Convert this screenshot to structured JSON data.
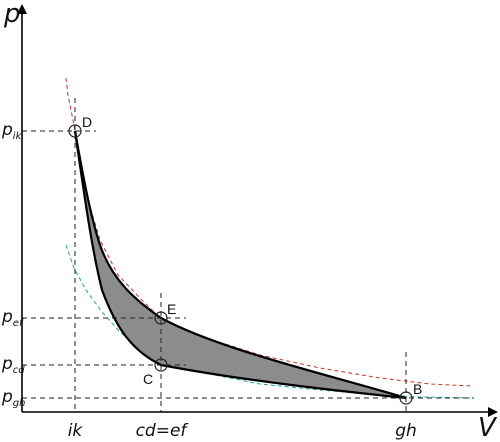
{
  "axes": {
    "y_title": "p",
    "x_title": "V"
  },
  "y_ticks": {
    "pik": {
      "main": "p",
      "sub": "ik"
    },
    "pef": {
      "main": "p",
      "sub": "ef"
    },
    "pcd": {
      "main": "p",
      "sub": "cd"
    },
    "pgh": {
      "main": "p",
      "sub": "gh"
    }
  },
  "x_ticks": {
    "ik": "ik",
    "cdef": "cd=ef",
    "gh": "gh"
  },
  "points": {
    "D": "D",
    "E": "E",
    "C": "C",
    "B": "B"
  },
  "colors": {
    "fill": "#8c8c8c",
    "edge": "#000000",
    "isotherm_hot": "#c0392b",
    "isotherm_cold": "#1aa39a"
  }
}
